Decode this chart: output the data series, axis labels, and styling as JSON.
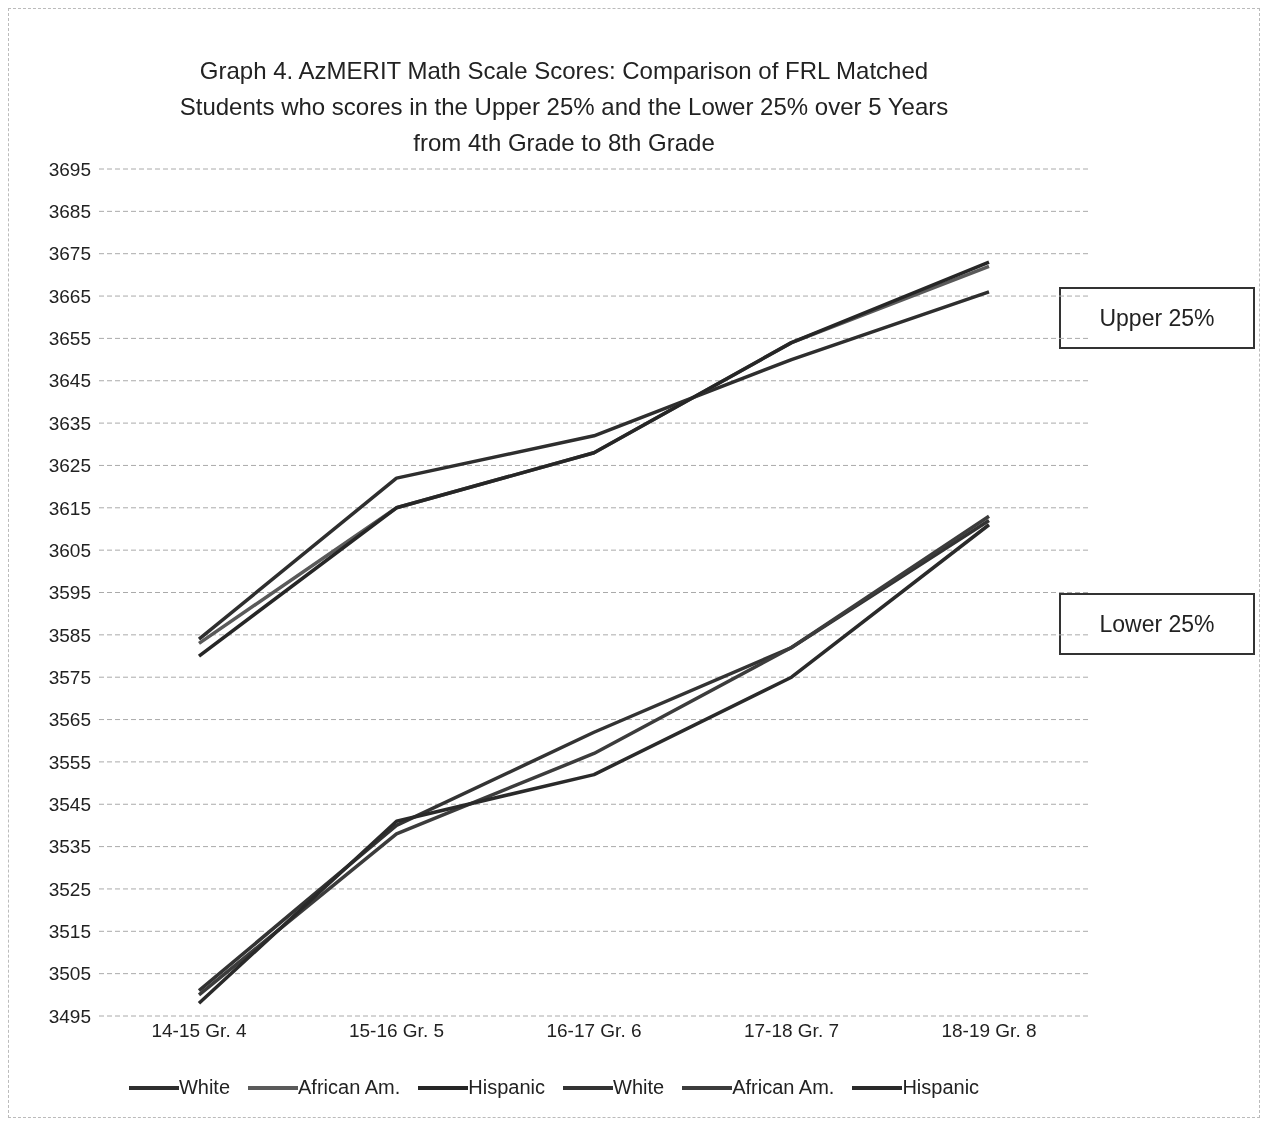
{
  "chart_data": {
    "type": "line",
    "title": "Graph 4. AzMERIT Math Scale Scores:  Comparison of FRL Matched Students who scores in the Upper 25% and the Lower 25% over 5 Years from 4th Grade to 8th Grade",
    "categories": [
      "14-15 Gr. 4",
      "15-16 Gr. 5",
      "16-17 Gr. 6",
      "17-18 Gr. 7",
      "18-19 Gr. 8"
    ],
    "series": [
      {
        "name": "White",
        "color": "#2e2e2e",
        "values": [
          3584,
          3622,
          3632,
          3650,
          3666
        ]
      },
      {
        "name": "African Am.",
        "color": "#5a5a5a",
        "values": [
          3583,
          3615,
          3628,
          3654,
          3672
        ]
      },
      {
        "name": "Hispanic",
        "color": "#262626",
        "values": [
          3580,
          3615,
          3628,
          3654,
          3673
        ]
      },
      {
        "name": "White",
        "color": "#333333",
        "values": [
          3501,
          3540,
          3562,
          3582,
          3612
        ]
      },
      {
        "name": "African Am.",
        "color": "#3c3c3c",
        "values": [
          3500,
          3538,
          3557,
          3582,
          3613
        ]
      },
      {
        "name": "Hispanic",
        "color": "#2a2a2a",
        "values": [
          3498,
          3541,
          3552,
          3575,
          3611
        ]
      }
    ],
    "ylim": [
      3495,
      3695
    ],
    "yticks": [
      3495,
      3505,
      3515,
      3525,
      3535,
      3545,
      3555,
      3565,
      3575,
      3585,
      3595,
      3605,
      3615,
      3625,
      3635,
      3645,
      3655,
      3665,
      3675,
      3685,
      3695
    ],
    "grid": "y",
    "legend": "bottom",
    "marker": "none",
    "line_style": "solid",
    "annotations": [
      "Upper 25%",
      "Lower 25%"
    ]
  }
}
